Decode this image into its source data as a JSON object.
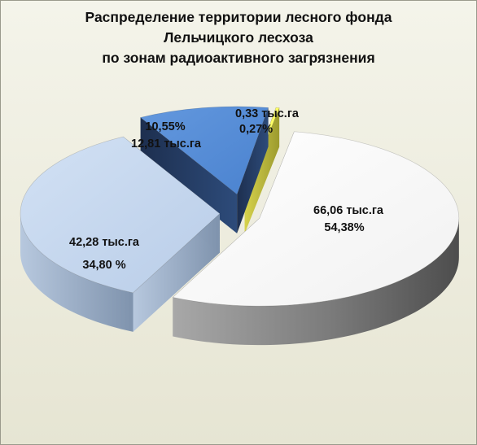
{
  "chart_data": {
    "type": "pie",
    "title": [
      "Распределение территории лесного фонда",
      "Лельчицкого лесхоза",
      "по зонам радиоактивного загрязнения"
    ],
    "slices": [
      {
        "area_label": "66,06 тыс.га",
        "pct_label": "54,38%",
        "value": 66.06,
        "percent": 54.38,
        "color": "#ffffff"
      },
      {
        "area_label": "42,28 тыс.га",
        "pct_label": "34,80 %",
        "value": 42.28,
        "percent": 34.8,
        "color": "#c6d9f1"
      },
      {
        "area_label": "12,81 тыс.га",
        "pct_label": "10,55%",
        "value": 12.81,
        "percent": 10.55,
        "color": "#558ed5"
      },
      {
        "area_label": "0,33 тыс.га",
        "pct_label": "0,27%",
        "value": 0.33,
        "percent": 0.27,
        "color": "#ffff66"
      }
    ],
    "exploded": true,
    "three_d": true,
    "legend": "none"
  }
}
